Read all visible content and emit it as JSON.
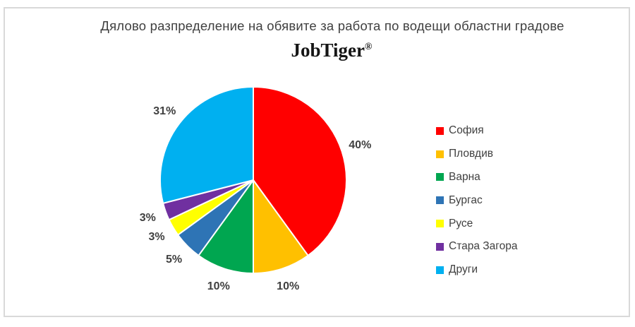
{
  "title": "Дялово разпределение на обявите за работа по водещи областни градове",
  "logo": {
    "text": "JobTiger",
    "registered_mark": "®"
  },
  "colors": {
    "text": "#404040",
    "frame_border": "#d9d9d9",
    "background": "#ffffff",
    "slice_separator": "#ffffff"
  },
  "chart_data": {
    "type": "pie",
    "title": "Дялово разпределение на обявите за работа по водещи областни градове",
    "legend_position": "right",
    "labels_position": "outside",
    "direction": "clockwise",
    "start_angle_deg": 0,
    "slices": [
      {
        "label": "София",
        "value": 40,
        "display": "40%",
        "color": "#ff0000"
      },
      {
        "label": "Пловдив",
        "value": 10,
        "display": "10%",
        "color": "#ffc000"
      },
      {
        "label": "Варна",
        "value": 10,
        "display": "10%",
        "color": "#00a650"
      },
      {
        "label": "Бургас",
        "value": 5,
        "display": "5%",
        "color": "#2e74b5"
      },
      {
        "label": "Русе",
        "value": 3,
        "display": "3%",
        "color": "#ffff00"
      },
      {
        "label": "Стара Загора",
        "value": 3,
        "display": "3%",
        "color": "#7030a0"
      },
      {
        "label": "Други",
        "value": 31,
        "display": "31%",
        "color": "#00b0f0"
      }
    ]
  }
}
